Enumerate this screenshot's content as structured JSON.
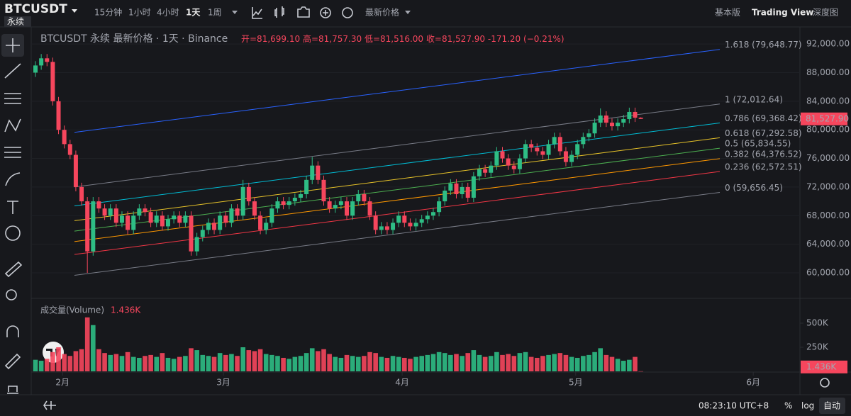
{
  "topbar": {
    "symbol": "BTCUSDT",
    "tag": "永续",
    "intervals": [
      "15分钟",
      "1小时",
      "4小时",
      "1天",
      "1周"
    ],
    "price_type": "最新价格",
    "views": [
      "基本版",
      "Trading View",
      "深度图"
    ]
  },
  "legend": {
    "title": "BTCUSDT 永续 最新价格 · 1天 · Binance",
    "ohlc": [
      "开=81,699.10",
      "高=81,757.30",
      "低=81,516.00",
      "收=81,527.90"
    ],
    "change": "-171.20 (−0.21%)"
  },
  "bottombar": {
    "clock": "08:23:10 UTC+8",
    "buttons": [
      "%",
      "log",
      "自动"
    ]
  },
  "chart_data": {
    "type": "candlestick",
    "up_color": "#2ebd85",
    "down_color": "#f6465d",
    "xlim": [
      -0.74,
      132.6
    ],
    "xticks": [
      {
        "value": 4.7,
        "label": "2月"
      },
      {
        "value": 32.6,
        "label": "3月"
      },
      {
        "value": 63.6,
        "label": "4月"
      },
      {
        "value": 93.7,
        "label": "5月"
      },
      {
        "value": 124.5,
        "label": "6月"
      }
    ],
    "ylim": [
      56530,
      94390
    ],
    "yticks": [
      {
        "value": 92000,
        "label": "92,000.00"
      },
      {
        "value": 88000,
        "label": "88,000.00"
      },
      {
        "value": 84000,
        "label": "84,000.00"
      },
      {
        "value": 80000,
        "label": "80,000.00"
      },
      {
        "value": 76000,
        "label": "76,000.00"
      },
      {
        "value": 72000,
        "label": "72,000.00"
      },
      {
        "value": 68000,
        "label": "68,000.00"
      },
      {
        "value": 64000,
        "label": "64,000.00"
      },
      {
        "value": 60000,
        "label": "60,000.00"
      }
    ],
    "last_price_label": "81,527.90",
    "candles": [
      [
        88000,
        89600,
        87400,
        89000
      ],
      [
        89000,
        90600,
        88400,
        90000
      ],
      [
        90000,
        90600,
        88900,
        89500
      ],
      [
        89500,
        90100,
        83400,
        84000
      ],
      [
        84000,
        84600,
        79400,
        80000
      ],
      [
        80000,
        80600,
        77400,
        78000
      ],
      [
        78000,
        78600,
        75900,
        76500
      ],
      [
        76500,
        77100,
        71400,
        72000
      ],
      [
        72000,
        72600,
        69400,
        70000
      ],
      [
        70000,
        70600,
        60000,
        63000
      ],
      [
        63000,
        70600,
        62400,
        70000
      ],
      [
        70000,
        70600,
        68400,
        69000
      ],
      [
        69000,
        69600,
        67400,
        68000
      ],
      [
        68000,
        69600,
        67400,
        69000
      ],
      [
        69000,
        69600,
        66400,
        67000
      ],
      [
        67000,
        68600,
        66400,
        68000
      ],
      [
        68000,
        68600,
        65400,
        66000
      ],
      [
        66000,
        68600,
        65400,
        68000
      ],
      [
        68000,
        69600,
        67400,
        69000
      ],
      [
        69000,
        69600,
        67900,
        68500
      ],
      [
        68500,
        69100,
        66400,
        67000
      ],
      [
        67000,
        68600,
        66400,
        68000
      ],
      [
        68000,
        68600,
        65900,
        66500
      ],
      [
        66500,
        68100,
        65900,
        67500
      ],
      [
        67500,
        68600,
        66900,
        68000
      ],
      [
        68000,
        68600,
        66400,
        67000
      ],
      [
        67000,
        68600,
        66400,
        68000
      ],
      [
        68000,
        68600,
        62400,
        63000
      ],
      [
        63000,
        65600,
        62400,
        65000
      ],
      [
        65000,
        66600,
        64400,
        66000
      ],
      [
        66000,
        67600,
        65400,
        67000
      ],
      [
        67000,
        67600,
        65400,
        66000
      ],
      [
        66000,
        68600,
        65400,
        68000
      ],
      [
        68000,
        68600,
        66400,
        67000
      ],
      [
        67000,
        69600,
        66400,
        69000
      ],
      [
        69000,
        69600,
        67400,
        68000
      ],
      [
        68000,
        73000,
        67400,
        72000
      ],
      [
        72000,
        72600,
        69400,
        70000
      ],
      [
        70000,
        70600,
        67400,
        68000
      ],
      [
        68000,
        68600,
        65400,
        66000
      ],
      [
        66000,
        67600,
        65400,
        67000
      ],
      [
        67000,
        69600,
        66400,
        69000
      ],
      [
        69000,
        70600,
        68400,
        70000
      ],
      [
        70000,
        70600,
        68900,
        69500
      ],
      [
        69500,
        70600,
        68900,
        70000
      ],
      [
        70000,
        71100,
        69400,
        70500
      ],
      [
        70500,
        71600,
        69900,
        71000
      ],
      [
        71000,
        73600,
        70400,
        73000
      ],
      [
        73000,
        76200,
        72400,
        75000
      ],
      [
        75000,
        75600,
        72400,
        73000
      ],
      [
        73000,
        73600,
        69400,
        70000
      ],
      [
        70000,
        70600,
        68400,
        69000
      ],
      [
        69000,
        70100,
        68400,
        69500
      ],
      [
        69500,
        70600,
        68900,
        70000
      ],
      [
        70000,
        70600,
        67400,
        68000
      ],
      [
        68000,
        70600,
        67400,
        70000
      ],
      [
        70000,
        71600,
        69400,
        71000
      ],
      [
        71000,
        71600,
        69400,
        70000
      ],
      [
        70000,
        70600,
        67400,
        68000
      ],
      [
        68000,
        68600,
        65400,
        66000
      ],
      [
        66000,
        67100,
        65400,
        66500
      ],
      [
        66500,
        67100,
        65400,
        66000
      ],
      [
        66000,
        67600,
        65400,
        67000
      ],
      [
        67000,
        68600,
        66400,
        68000
      ],
      [
        68000,
        68600,
        66400,
        67000
      ],
      [
        67000,
        67600,
        65900,
        66500
      ],
      [
        66500,
        67600,
        65900,
        67000
      ],
      [
        67000,
        68100,
        66400,
        67500
      ],
      [
        67500,
        68600,
        66900,
        68000
      ],
      [
        68000,
        69100,
        67400,
        68500
      ],
      [
        68500,
        70600,
        67900,
        70000
      ],
      [
        70000,
        72100,
        69400,
        71500
      ],
      [
        71500,
        73100,
        70900,
        72500
      ],
      [
        72500,
        73100,
        70400,
        71000
      ],
      [
        71000,
        72600,
        70400,
        72000
      ],
      [
        72000,
        72600,
        69900,
        70500
      ],
      [
        70500,
        74100,
        69900,
        73500
      ],
      [
        73500,
        75100,
        72900,
        74500
      ],
      [
        74500,
        75100,
        73400,
        74000
      ],
      [
        74000,
        75600,
        73400,
        75000
      ],
      [
        75000,
        77600,
        74400,
        77000
      ],
      [
        77000,
        77600,
        75400,
        76000
      ],
      [
        76000,
        76600,
        74400,
        75000
      ],
      [
        75000,
        75600,
        73900,
        74500
      ],
      [
        74500,
        76600,
        73900,
        76000
      ],
      [
        76000,
        78600,
        75400,
        78000
      ],
      [
        78000,
        78600,
        76900,
        77500
      ],
      [
        77500,
        78100,
        76400,
        77000
      ],
      [
        77000,
        77600,
        75900,
        76500
      ],
      [
        76500,
        78600,
        75900,
        78000
      ],
      [
        78000,
        79600,
        77400,
        79000
      ],
      [
        79000,
        79600,
        76400,
        77000
      ],
      [
        77000,
        77600,
        74900,
        75500
      ],
      [
        75500,
        77100,
        74900,
        76500
      ],
      [
        76500,
        78600,
        75900,
        78000
      ],
      [
        78000,
        79600,
        77400,
        79000
      ],
      [
        79000,
        80100,
        78400,
        79500
      ],
      [
        79500,
        81600,
        78900,
        81000
      ],
      [
        81000,
        83000,
        80400,
        82000
      ],
      [
        82000,
        82600,
        80400,
        81000
      ],
      [
        81000,
        81600,
        79900,
        80500
      ],
      [
        80500,
        81600,
        79900,
        81000
      ],
      [
        81000,
        82100,
        80400,
        81500
      ],
      [
        81500,
        83100,
        80900,
        82500
      ],
      [
        82500,
        83100,
        81099.1,
        81699.1
      ],
      [
        81699.1,
        81757.3,
        81516,
        81527.9
      ]
    ],
    "fib_levels": [
      {
        "label": "1.618 (79,648.77)",
        "price": 79648.77,
        "color": "#2962ff"
      },
      {
        "label": "1 (72,012.64)",
        "price": 72012.64,
        "color": "#787b86"
      },
      {
        "label": "0.786 (69,368.42)",
        "price": 69368.42,
        "color": "#00bcd4"
      },
      {
        "label": "0.618 (67,292.58)",
        "price": 67292.58,
        "color": "#e6c229"
      },
      {
        "label": "0.5 (65,834.55)",
        "price": 65834.55,
        "color": "#4caf50"
      },
      {
        "label": "0.382 (64,376.52)",
        "price": 64376.52,
        "color": "#ff9800"
      },
      {
        "label": "0.236 (62,572.51)",
        "price": 62572.51,
        "color": "#f23645"
      },
      {
        "label": "0 (59,656.45)",
        "price": 59656.45,
        "color": "#787b86"
      }
    ],
    "volume": {
      "title": "成交量(Volume)",
      "last_label": "1.436K",
      "ylim": [
        0,
        750000
      ],
      "yticks": [
        {
          "value": 500000,
          "label": "500K"
        },
        {
          "value": 250000,
          "label": "250K"
        }
      ],
      "values": [
        120000,
        110000,
        130000,
        200000,
        250000,
        180000,
        160000,
        210000,
        230000,
        560000,
        480000,
        230000,
        190000,
        170000,
        180000,
        160000,
        200000,
        150000,
        140000,
        160000,
        170000,
        150000,
        190000,
        140000,
        130000,
        150000,
        160000,
        240000,
        220000,
        170000,
        160000,
        150000,
        190000,
        170000,
        180000,
        160000,
        250000,
        220000,
        210000,
        230000,
        180000,
        170000,
        160000,
        140000,
        130000,
        150000,
        160000,
        190000,
        240000,
        210000,
        230000,
        180000,
        150000,
        140000,
        170000,
        160000,
        150000,
        160000,
        200000,
        190000,
        150000,
        140000,
        160000,
        150000,
        140000,
        130000,
        150000,
        160000,
        170000,
        180000,
        200000,
        190000,
        170000,
        180000,
        160000,
        190000,
        220000,
        170000,
        150000,
        160000,
        200000,
        170000,
        180000,
        160000,
        190000,
        200000,
        150000,
        140000,
        160000,
        170000,
        180000,
        190000,
        170000,
        150000,
        140000,
        160000,
        170000,
        200000,
        240000,
        170000,
        150000,
        130000,
        110000,
        120000,
        150000,
        1436
      ]
    }
  }
}
